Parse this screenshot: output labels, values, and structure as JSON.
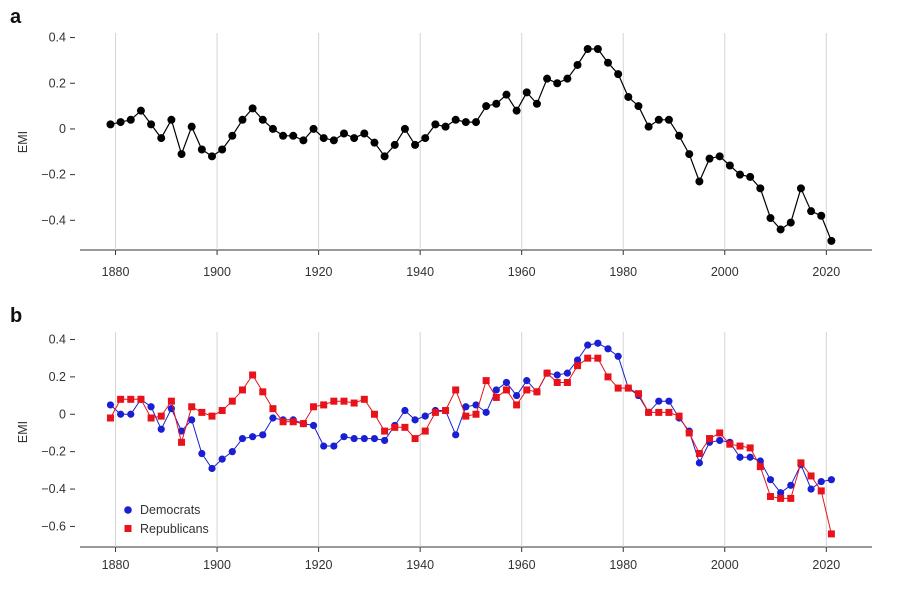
{
  "chart_data": [
    {
      "panel": "a",
      "type": "line",
      "title": "",
      "xlabel": "",
      "ylabel": "EMI",
      "xlim": [
        1873,
        2029
      ],
      "ylim": [
        -0.53,
        0.42
      ],
      "xticks": [
        1880,
        1900,
        1920,
        1940,
        1960,
        1980,
        2000,
        2020
      ],
      "yticks": [
        0.4,
        0.2,
        0,
        -0.2,
        -0.4
      ],
      "ytick_labels": [
        "0.4",
        "0.2",
        "0",
        "−0.2",
        "−0.4"
      ],
      "grid": "vertical",
      "colors": {
        "series": "#000000"
      },
      "series": [
        {
          "x": [
            1879,
            1881,
            1883,
            1885,
            1887,
            1889,
            1891,
            1893,
            1895,
            1897,
            1899,
            1901,
            1903,
            1905,
            1907,
            1909,
            1911,
            1913,
            1915,
            1917,
            1919,
            1921,
            1923,
            1925,
            1927,
            1929,
            1931,
            1933,
            1935,
            1937,
            1939,
            1941,
            1943,
            1945,
            1947,
            1949,
            1951,
            1953,
            1955,
            1957,
            1959,
            1961,
            1963,
            1965,
            1967,
            1969,
            1971,
            1973,
            1975,
            1977,
            1979,
            1981,
            1983,
            1985,
            1987,
            1989,
            1991,
            1993,
            1995,
            1997,
            1999,
            2001,
            2003,
            2005,
            2007,
            2009,
            2011,
            2013,
            2015,
            2017,
            2019,
            2021
          ],
          "y": [
            0.02,
            0.03,
            0.04,
            0.08,
            0.02,
            -0.04,
            0.04,
            -0.11,
            0.01,
            -0.09,
            -0.12,
            -0.09,
            -0.03,
            0.04,
            0.09,
            0.04,
            0.0,
            -0.03,
            -0.03,
            -0.05,
            0.0,
            -0.04,
            -0.05,
            -0.02,
            -0.04,
            -0.02,
            -0.06,
            -0.12,
            -0.07,
            0.0,
            -0.07,
            -0.04,
            0.02,
            0.01,
            0.04,
            0.03,
            0.03,
            0.1,
            0.11,
            0.15,
            0.08,
            0.16,
            0.11,
            0.22,
            0.2,
            0.22,
            0.28,
            0.35,
            0.35,
            0.29,
            0.24,
            0.14,
            0.1,
            0.01,
            0.04,
            0.04,
            -0.03,
            -0.11,
            -0.23,
            -0.13,
            -0.12,
            -0.16,
            -0.2,
            -0.21,
            -0.26,
            -0.39,
            -0.44,
            -0.41,
            -0.26,
            -0.36,
            -0.38,
            -0.49
          ]
        }
      ]
    },
    {
      "panel": "b",
      "type": "line",
      "title": "",
      "xlabel": "",
      "ylabel": "EMI",
      "xlim": [
        1873,
        2029
      ],
      "ylim": [
        -0.71,
        0.44
      ],
      "xticks": [
        1880,
        1900,
        1920,
        1940,
        1960,
        1980,
        2000,
        2020
      ],
      "yticks": [
        0.4,
        0.2,
        0,
        -0.2,
        -0.4,
        -0.6
      ],
      "ytick_labels": [
        "0.4",
        "0.2",
        "0",
        "−0.2",
        "−0.4",
        "−0.6"
      ],
      "grid": "vertical",
      "legend": "bottom-left",
      "series": [
        {
          "name": "Democrats",
          "marker": "circle",
          "color": "#1a1fd1",
          "x": [
            1879,
            1881,
            1883,
            1885,
            1887,
            1889,
            1891,
            1893,
            1895,
            1897,
            1899,
            1901,
            1903,
            1905,
            1907,
            1909,
            1911,
            1913,
            1915,
            1917,
            1919,
            1921,
            1923,
            1925,
            1927,
            1929,
            1931,
            1933,
            1935,
            1937,
            1939,
            1941,
            1943,
            1945,
            1947,
            1949,
            1951,
            1953,
            1955,
            1957,
            1959,
            1961,
            1963,
            1965,
            1967,
            1969,
            1971,
            1973,
            1975,
            1977,
            1979,
            1981,
            1983,
            1985,
            1987,
            1989,
            1991,
            1993,
            1995,
            1997,
            1999,
            2001,
            2003,
            2005,
            2007,
            2009,
            2011,
            2013,
            2015,
            2017,
            2019,
            2021
          ],
          "y": [
            0.05,
            0.0,
            0.0,
            0.08,
            0.04,
            -0.08,
            0.03,
            -0.09,
            -0.03,
            -0.21,
            -0.29,
            -0.24,
            -0.2,
            -0.13,
            -0.12,
            -0.11,
            -0.02,
            -0.03,
            -0.03,
            -0.05,
            -0.06,
            -0.17,
            -0.17,
            -0.12,
            -0.13,
            -0.13,
            -0.13,
            -0.14,
            -0.06,
            0.02,
            -0.03,
            -0.01,
            0.02,
            0.02,
            -0.11,
            0.04,
            0.05,
            0.01,
            0.13,
            0.17,
            0.1,
            0.18,
            0.12,
            0.22,
            0.21,
            0.22,
            0.29,
            0.37,
            0.38,
            0.35,
            0.31,
            0.14,
            0.1,
            0.01,
            0.07,
            0.07,
            -0.02,
            -0.09,
            -0.26,
            -0.15,
            -0.14,
            -0.15,
            -0.23,
            -0.23,
            -0.25,
            -0.35,
            -0.42,
            -0.38,
            -0.27,
            -0.4,
            -0.36,
            -0.35
          ]
        },
        {
          "name": "Republicans",
          "marker": "square",
          "color": "#e8121b",
          "x": [
            1879,
            1881,
            1883,
            1885,
            1887,
            1889,
            1891,
            1893,
            1895,
            1897,
            1899,
            1901,
            1903,
            1905,
            1907,
            1909,
            1911,
            1913,
            1915,
            1917,
            1919,
            1921,
            1923,
            1925,
            1927,
            1929,
            1931,
            1933,
            1935,
            1937,
            1939,
            1941,
            1943,
            1945,
            1947,
            1949,
            1951,
            1953,
            1955,
            1957,
            1959,
            1961,
            1963,
            1965,
            1967,
            1969,
            1971,
            1973,
            1975,
            1977,
            1979,
            1981,
            1983,
            1985,
            1987,
            1989,
            1991,
            1993,
            1995,
            1997,
            1999,
            2001,
            2003,
            2005,
            2007,
            2009,
            2011,
            2013,
            2015,
            2017,
            2019,
            2021
          ],
          "y": [
            -0.02,
            0.08,
            0.08,
            0.08,
            -0.02,
            -0.01,
            0.07,
            -0.15,
            0.04,
            0.01,
            -0.01,
            0.02,
            0.07,
            0.13,
            0.21,
            0.12,
            0.03,
            -0.04,
            -0.04,
            -0.05,
            0.04,
            0.05,
            0.07,
            0.07,
            0.06,
            0.08,
            0.0,
            -0.09,
            -0.07,
            -0.07,
            -0.13,
            -0.09,
            0.01,
            0.02,
            0.13,
            -0.01,
            0.0,
            0.18,
            0.09,
            0.13,
            0.05,
            0.13,
            0.12,
            0.22,
            0.17,
            0.17,
            0.26,
            0.3,
            0.3,
            0.2,
            0.14,
            0.14,
            0.11,
            0.01,
            0.01,
            0.01,
            -0.01,
            -0.1,
            -0.21,
            -0.13,
            -0.1,
            -0.16,
            -0.17,
            -0.18,
            -0.28,
            -0.44,
            -0.45,
            -0.45,
            -0.26,
            -0.33,
            -0.41,
            -0.64
          ]
        }
      ]
    }
  ],
  "panels": {
    "a": {
      "label": "a"
    },
    "b": {
      "label": "b"
    }
  },
  "legend": {
    "democrats": "Democrats",
    "republicans": "Republicans"
  }
}
